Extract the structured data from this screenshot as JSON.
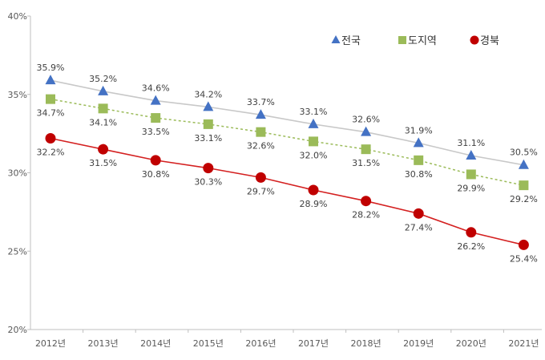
{
  "chart_data": {
    "type": "line",
    "categories": [
      "2012년",
      "2013년",
      "2014년",
      "2015년",
      "2016년",
      "2017년",
      "2018년",
      "2019년",
      "2020년",
      "2021년"
    ],
    "ylim": [
      20,
      40
    ],
    "y_ticks": [
      "20%",
      "25%",
      "30%",
      "35%",
      "40%"
    ],
    "y_tick_values": [
      20,
      25,
      30,
      35,
      40
    ],
    "grid": false,
    "legend_position": "top-right",
    "series": [
      {
        "name": "전국",
        "values": [
          35.9,
          35.2,
          34.6,
          34.2,
          33.7,
          33.1,
          32.6,
          31.9,
          31.1,
          30.5
        ],
        "labels": [
          "35.9%",
          "35.2%",
          "34.6%",
          "34.2%",
          "33.7%",
          "33.1%",
          "32.6%",
          "31.9%",
          "31.1%",
          "30.5%"
        ],
        "marker": "triangle",
        "marker_color": "#4472c4",
        "line_color": "#c8c8c8",
        "line_style": "solid",
        "label_position": "above"
      },
      {
        "name": "도지역",
        "values": [
          34.7,
          34.1,
          33.5,
          33.1,
          32.6,
          32.0,
          31.5,
          30.8,
          29.9,
          29.2
        ],
        "labels": [
          "34.7%",
          "34.1%",
          "33.5%",
          "33.1%",
          "32.6%",
          "32.0%",
          "31.5%",
          "30.8%",
          "29.9%",
          "29.2%"
        ],
        "marker": "square",
        "marker_color": "#9bbb59",
        "line_color": "#9bbb59",
        "line_style": "dotted",
        "label_position": "below"
      },
      {
        "name": "경북",
        "values": [
          32.2,
          31.5,
          30.8,
          30.3,
          29.7,
          28.9,
          28.2,
          27.4,
          26.2,
          25.4
        ],
        "labels": [
          "32.2%",
          "31.5%",
          "30.8%",
          "30.3%",
          "29.7%",
          "28.9%",
          "28.2%",
          "27.4%",
          "26.2%",
          "25.4%"
        ],
        "marker": "circle",
        "marker_color": "#c00000",
        "line_color": "#d42020",
        "line_style": "solid",
        "label_position": "below"
      }
    ]
  }
}
